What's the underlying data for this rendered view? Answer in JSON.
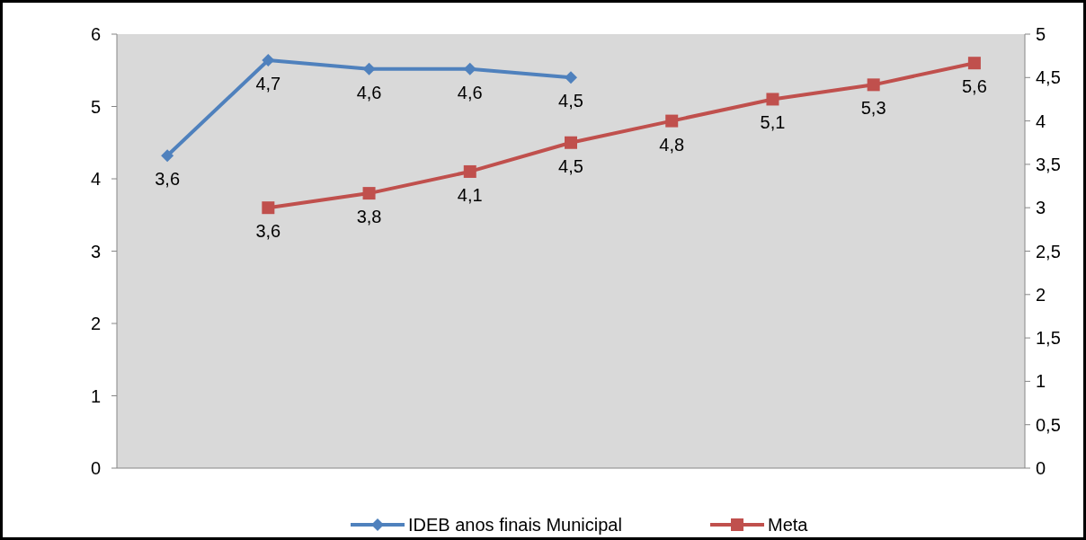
{
  "chart_data": {
    "type": "line",
    "categories": [
      null,
      null,
      null,
      null,
      null,
      null,
      null,
      null,
      null
    ],
    "series": [
      {
        "name": "IDEB anos finais Municipal",
        "color": "#4f81bd",
        "marker": "diamond",
        "axis": "y2",
        "values": [
          3.6,
          4.7,
          4.6,
          4.6,
          4.5,
          null,
          null,
          null,
          null
        ],
        "value_labels": [
          "3,6",
          "4,7",
          "4,6",
          "4,6",
          "4,5",
          null,
          null,
          null,
          null
        ]
      },
      {
        "name": "Meta",
        "color": "#c0504d",
        "marker": "square",
        "values": [
          null,
          3.6,
          3.8,
          4.1,
          4.5,
          4.8,
          5.1,
          5.3,
          5.6
        ],
        "value_labels": [
          null,
          "3,6",
          "3,8",
          "4,1",
          "4,5",
          "4,8",
          "5,1",
          "5,3",
          "5,6"
        ]
      }
    ],
    "ylim": [
      0,
      6
    ],
    "yticks": [
      0,
      1,
      2,
      3,
      4,
      5,
      6
    ],
    "y2lim": [
      0,
      5
    ],
    "y2ticks": [
      0,
      {
        "value": 0.5,
        "label": "0,5"
      },
      1,
      {
        "value": 1.5,
        "label": "1,5"
      },
      2,
      {
        "value": 2.5,
        "label": "2,5"
      },
      3,
      {
        "value": 3.5,
        "label": "3,5"
      },
      4,
      {
        "value": 4.5,
        "label": "4,5"
      },
      5
    ],
    "grid": false,
    "legend": "bottom"
  }
}
